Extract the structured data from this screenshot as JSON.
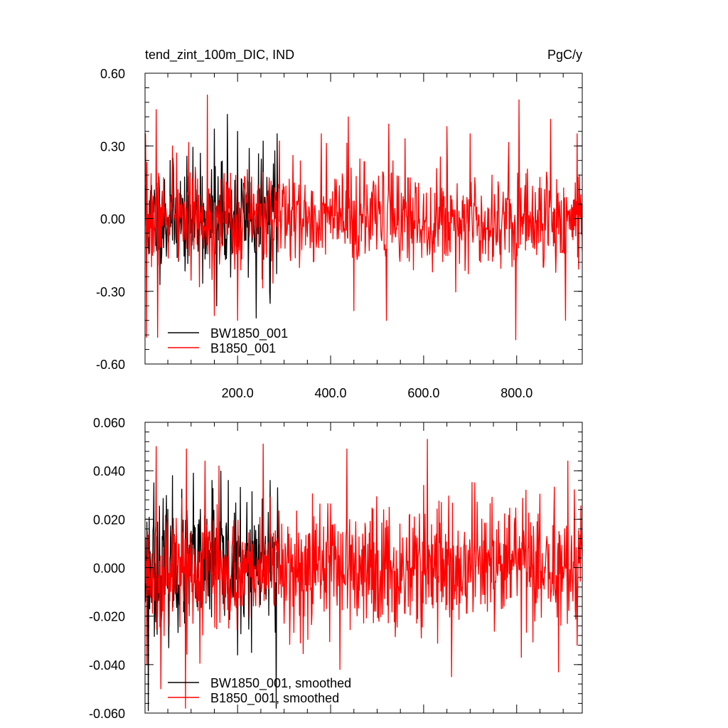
{
  "chart_data": [
    {
      "type": "line",
      "title": "tend_zint_100m_DIC, IND",
      "units": "PgC/y",
      "xlim": [
        1,
        941
      ],
      "ylim": [
        -0.6,
        0.6
      ],
      "xticks": [
        200,
        400,
        600,
        800
      ],
      "xtick_labels": [
        "200.0",
        "400.0",
        "600.0",
        "800.0"
      ],
      "yticks": [
        -0.6,
        -0.3,
        0.0,
        0.3,
        0.6
      ],
      "ytick_labels": [
        "-0.60",
        "-0.30",
        "0.00",
        "0.30",
        "0.60"
      ],
      "legend": {
        "location": "bottom-left"
      },
      "series": [
        {
          "name": "BW1850_001",
          "color": "#000000",
          "x_range": [
            1,
            288
          ],
          "amplitude": 0.15,
          "seed": 11,
          "peaks": [
            [
              55,
              0.24
            ],
            [
              120,
              0.27
            ],
            [
              150,
              0.37
            ],
            [
              155,
              -0.36
            ],
            [
              178,
              0.43
            ],
            [
              200,
              0.36
            ],
            [
              225,
              0.29
            ],
            [
              240,
              -0.41
            ],
            [
              255,
              0.32
            ],
            [
              270,
              -0.35
            ],
            [
              280,
              0.28
            ],
            [
              285,
              0.35
            ]
          ]
        },
        {
          "name": "B1850_001",
          "color": "#ff0000",
          "x_range": [
            1,
            941
          ],
          "amplitude": 0.14,
          "seed": 7,
          "peaks": [
            [
              2,
              0.35
            ],
            [
              4,
              -0.49
            ],
            [
              25,
              0.45
            ],
            [
              28,
              -0.49
            ],
            [
              60,
              0.3
            ],
            [
              135,
              0.51
            ],
            [
              150,
              -0.4
            ],
            [
              200,
              -0.42
            ],
            [
              290,
              0.32
            ],
            [
              380,
              0.35
            ],
            [
              438,
              0.42
            ],
            [
              450,
              -0.38
            ],
            [
              520,
              -0.42
            ],
            [
              525,
              0.39
            ],
            [
              560,
              0.33
            ],
            [
              650,
              0.38
            ],
            [
              700,
              0.35
            ],
            [
              798,
              -0.5
            ],
            [
              805,
              0.49
            ],
            [
              873,
              0.41
            ],
            [
              905,
              -0.42
            ],
            [
              930,
              0.35
            ]
          ]
        }
      ]
    },
    {
      "type": "line",
      "title": "",
      "xlim": [
        1,
        941
      ],
      "ylim": [
        -0.06,
        0.06
      ],
      "xticks": [
        200,
        400,
        600,
        800
      ],
      "xtick_labels": [],
      "yticks": [
        -0.06,
        -0.04,
        -0.02,
        0.0,
        0.02,
        0.04,
        0.06
      ],
      "ytick_labels": [
        "-0.060",
        "-0.040",
        "-0.020",
        "0.000",
        "0.020",
        "0.040",
        "0.060"
      ],
      "legend": {
        "location": "bottom-left"
      },
      "series": [
        {
          "name": "BW1850_001, smoothed",
          "color": "#000000",
          "x_range": [
            1,
            288
          ],
          "amplitude": 0.018,
          "seed": 23,
          "peaks": [
            [
              8,
              -0.059
            ],
            [
              20,
              0.035
            ],
            [
              60,
              0.038
            ],
            [
              105,
              0.039
            ],
            [
              145,
              0.036
            ],
            [
              180,
              0.036
            ],
            [
              200,
              -0.036
            ],
            [
              230,
              -0.035
            ],
            [
              270,
              0.036
            ],
            [
              283,
              -0.058
            ],
            [
              286,
              0.033
            ]
          ]
        },
        {
          "name": "B1850_001, smoothed",
          "color": "#ff0000",
          "x_range": [
            1,
            941
          ],
          "amplitude": 0.017,
          "seed": 5,
          "peaks": [
            [
              5,
              -0.04
            ],
            [
              25,
              0.05
            ],
            [
              35,
              -0.05
            ],
            [
              90,
              0.049
            ],
            [
              88,
              -0.058
            ],
            [
              130,
              0.044
            ],
            [
              160,
              0.042
            ],
            [
              255,
              0.051
            ],
            [
              420,
              -0.042
            ],
            [
              435,
              0.049
            ],
            [
              600,
              0.034
            ],
            [
              608,
              0.053
            ],
            [
              660,
              -0.045
            ],
            [
              710,
              0.035
            ],
            [
              810,
              -0.037
            ],
            [
              820,
              0.032
            ],
            [
              890,
              -0.043
            ],
            [
              910,
              0.044
            ],
            [
              930,
              -0.032
            ]
          ]
        }
      ]
    }
  ]
}
